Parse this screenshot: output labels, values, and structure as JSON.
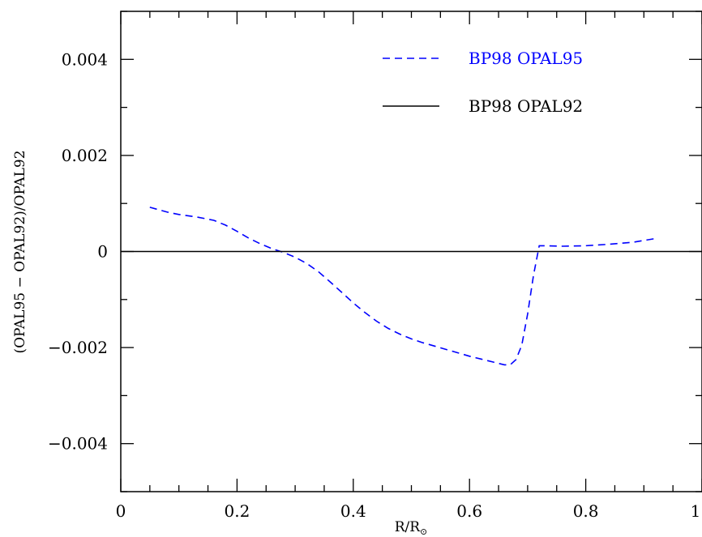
{
  "chart_data": {
    "type": "line",
    "xlabel": "R/R",
    "xlabel_subscript": "⊙",
    "ylabel": "(OPAL95 − OPAL92)/OPAL92",
    "xlim": [
      0,
      1
    ],
    "ylim": [
      -0.005,
      0.005
    ],
    "x_ticks": [
      0,
      0.2,
      0.4,
      0.6,
      0.8,
      1
    ],
    "x_tick_labels": [
      "0",
      "0.2",
      "0.4",
      "0.6",
      "0.8",
      "1"
    ],
    "y_ticks": [
      -0.004,
      -0.002,
      0,
      0.002,
      0.004
    ],
    "y_tick_labels": [
      "−0.004",
      "−0.002",
      "0",
      "0.002",
      "0.004"
    ],
    "grid": false,
    "legend_position": "top-right",
    "series": [
      {
        "name": "BP98 OPAL95",
        "color": "#0000ff",
        "dash": "dashed",
        "x": [
          0.05,
          0.08,
          0.1,
          0.13,
          0.16,
          0.18,
          0.2,
          0.22,
          0.24,
          0.26,
          0.28,
          0.3,
          0.32,
          0.34,
          0.36,
          0.38,
          0.4,
          0.42,
          0.44,
          0.46,
          0.48,
          0.5,
          0.52,
          0.54,
          0.56,
          0.58,
          0.6,
          0.62,
          0.64,
          0.66,
          0.67,
          0.68,
          0.69,
          0.7,
          0.71,
          0.72,
          0.73,
          0.76,
          0.8,
          0.84,
          0.88,
          0.9,
          0.92
        ],
        "y": [
          0.00092,
          0.00082,
          0.00077,
          0.00072,
          0.00065,
          0.00055,
          0.00042,
          0.00028,
          0.00016,
          6e-05,
          -2e-05,
          -0.00012,
          -0.00025,
          -0.00042,
          -0.00063,
          -0.00085,
          -0.00107,
          -0.00127,
          -0.00145,
          -0.0016,
          -0.00172,
          -0.00182,
          -0.0019,
          -0.00197,
          -0.00204,
          -0.00211,
          -0.00218,
          -0.00224,
          -0.0023,
          -0.00236,
          -0.00236,
          -0.00225,
          -0.00195,
          -0.0013,
          -0.0005,
          0.00012,
          0.00012,
          0.00011,
          0.00012,
          0.00015,
          0.00019,
          0.00023,
          0.00027
        ]
      },
      {
        "name": "BP98 OPAL92",
        "color": "#000000",
        "dash": "solid",
        "x": [
          0,
          1
        ],
        "y": [
          0,
          0
        ]
      }
    ]
  }
}
